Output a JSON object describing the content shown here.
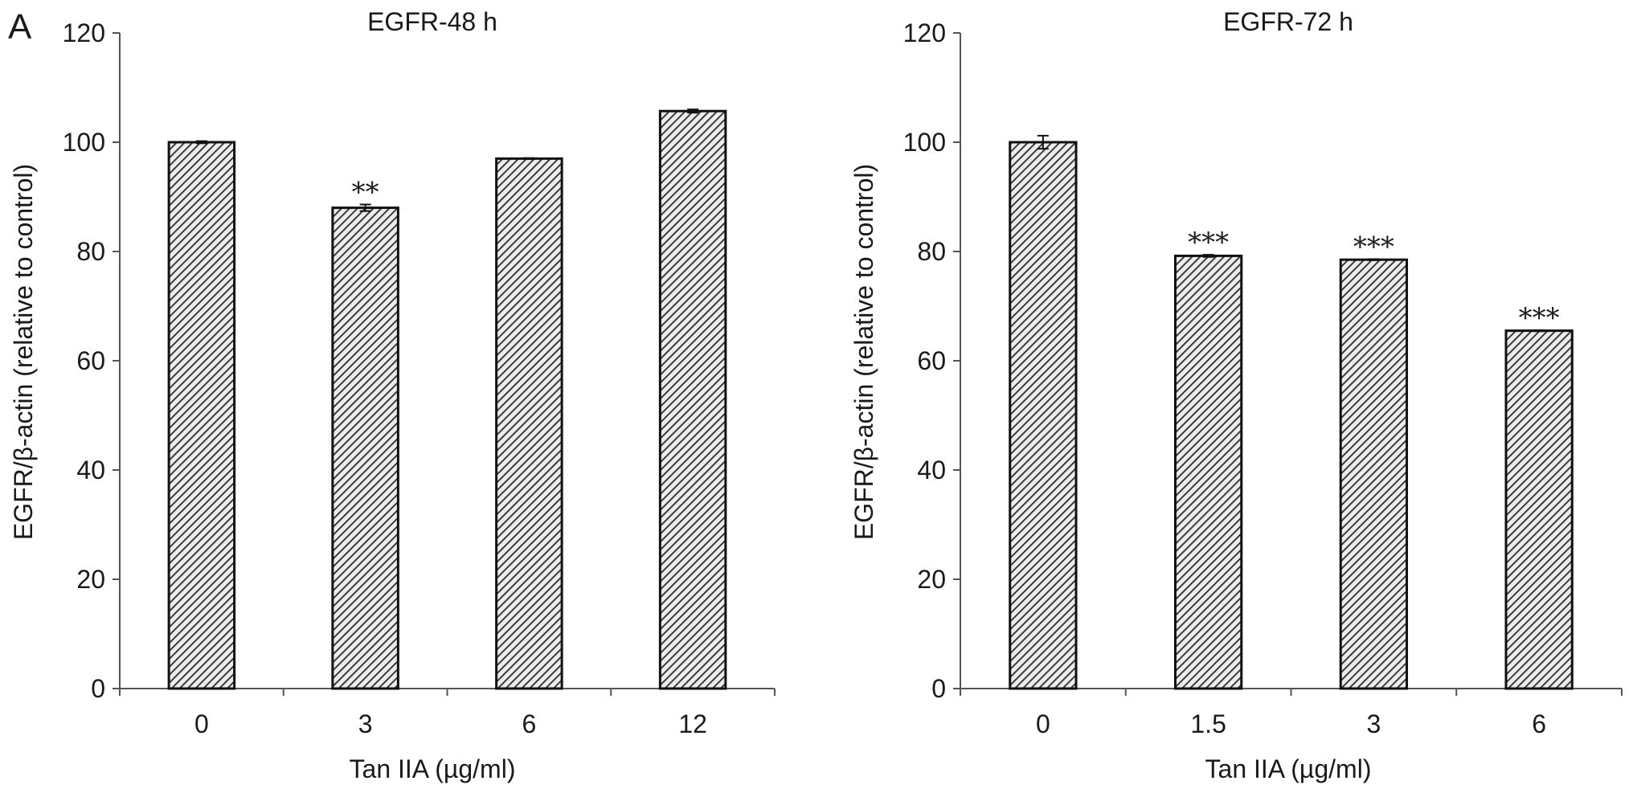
{
  "panel_label": "A",
  "chart_data": [
    {
      "type": "bar",
      "title": "EGFR-48 h",
      "xlabel": "Tan IIA (µg/ml)",
      "ylabel": "EGFR/β-actin (relative to control)",
      "ylim": [
        0,
        120
      ],
      "yticks": [
        0,
        20,
        40,
        60,
        80,
        100,
        120
      ],
      "categories": [
        "0",
        "3",
        "6",
        "12"
      ],
      "values": [
        100,
        88,
        97,
        105.7
      ],
      "errors": [
        0.2,
        0.6,
        0.1,
        0.3
      ],
      "significance": [
        "",
        "**",
        "",
        ""
      ],
      "bar_fill": "hatched-gray",
      "grid": false,
      "legend": "none"
    },
    {
      "type": "bar",
      "title": "EGFR-72 h",
      "xlabel": "Tan IIA (µg/ml)",
      "ylabel": "EGFR/β-actin (relative to control)",
      "ylim": [
        0,
        120
      ],
      "yticks": [
        0,
        20,
        40,
        60,
        80,
        100,
        120
      ],
      "categories": [
        "0",
        "1.5",
        "3",
        "6"
      ],
      "values": [
        100,
        79.2,
        78.5,
        65.5
      ],
      "errors": [
        1.2,
        0.2,
        0.1,
        0.1
      ],
      "significance": [
        "",
        "***",
        "***",
        "***"
      ],
      "bar_fill": "hatched-gray",
      "grid": false,
      "legend": "none"
    }
  ]
}
